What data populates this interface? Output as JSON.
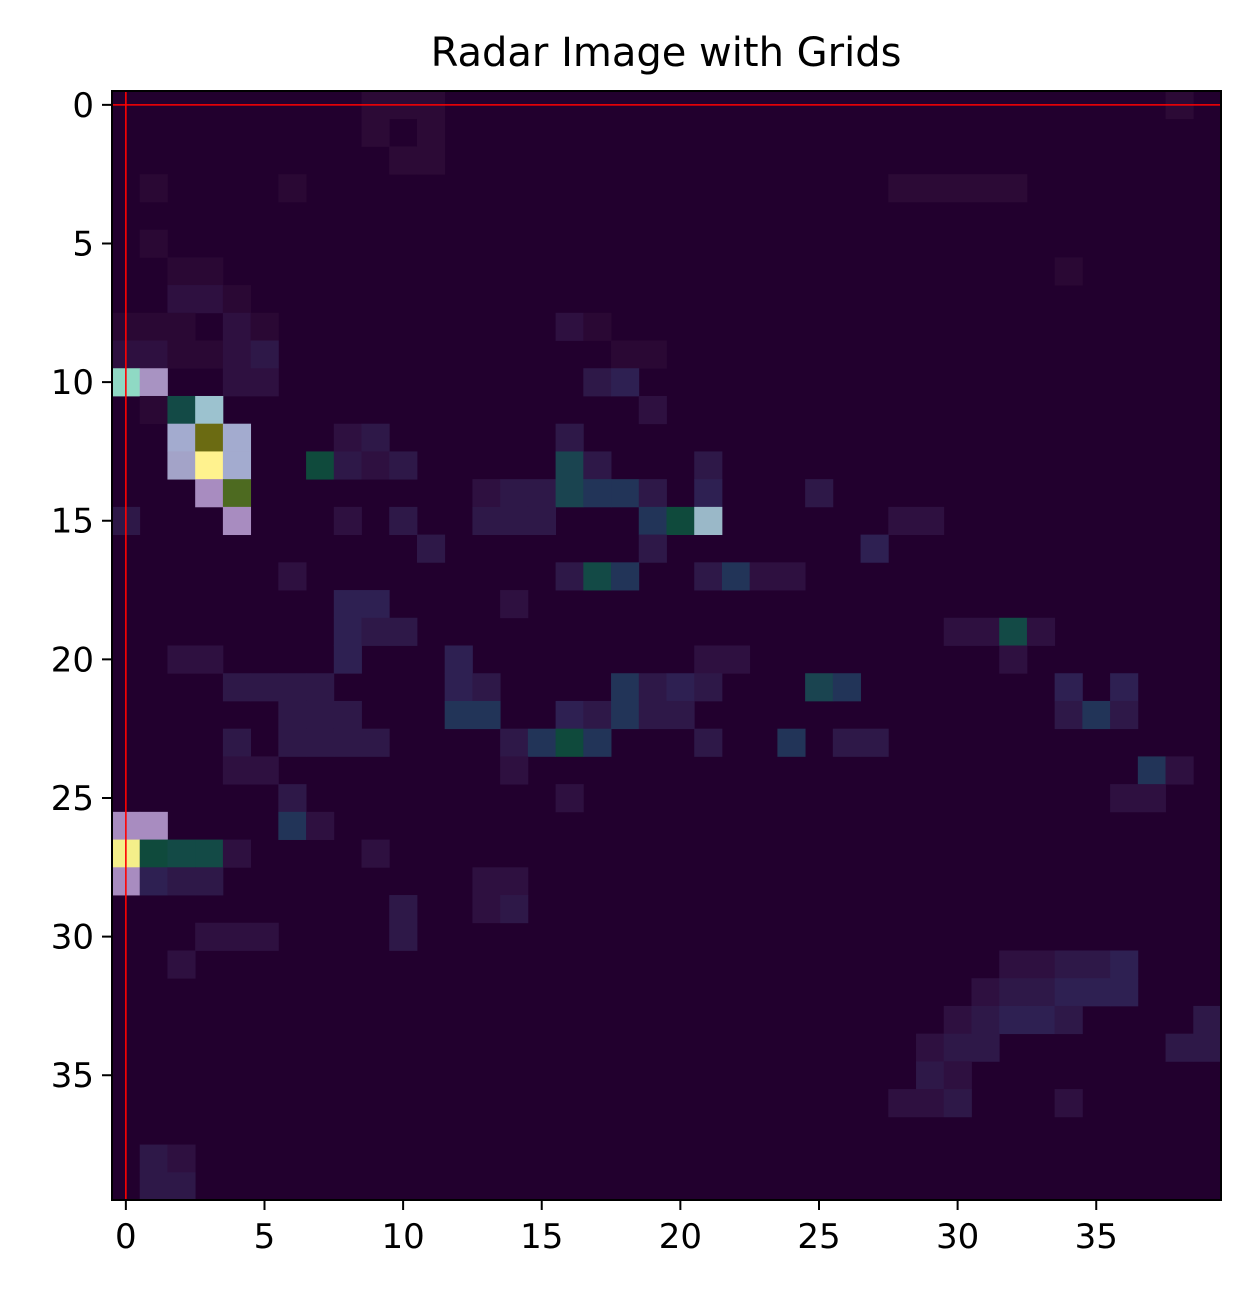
{
  "chart_data": {
    "type": "heatmap",
    "title": "Radar Image with Grids",
    "xlabel": "",
    "ylabel": "",
    "grid_size": [
      40,
      40
    ],
    "xlim": [
      -0.5,
      39.5
    ],
    "ylim": [
      39.5,
      -0.5
    ],
    "x_ticks": [
      0,
      5,
      10,
      15,
      20,
      25,
      30,
      35
    ],
    "y_ticks": [
      0,
      5,
      10,
      15,
      20,
      25,
      30,
      35
    ],
    "background_color": "#22002e",
    "grid_line": {
      "color": "#ff0000",
      "row": 0,
      "col": 0
    },
    "cells": [
      {
        "row": 0,
        "col": 9,
        "color": "#2c0a36"
      },
      {
        "row": 0,
        "col": 10,
        "color": "#2c0a36"
      },
      {
        "row": 0,
        "col": 11,
        "color": "#2c0a36"
      },
      {
        "row": 0,
        "col": 38,
        "color": "#2c0a36"
      },
      {
        "row": 1,
        "col": 9,
        "color": "#2c0a36"
      },
      {
        "row": 1,
        "col": 11,
        "color": "#2c0a36"
      },
      {
        "row": 2,
        "col": 10,
        "color": "#2c0a36"
      },
      {
        "row": 2,
        "col": 11,
        "color": "#2c0a36"
      },
      {
        "row": 3,
        "col": 1,
        "color": "#2a0834"
      },
      {
        "row": 3,
        "col": 6,
        "color": "#2a0834"
      },
      {
        "row": 3,
        "col": 28,
        "color": "#2c0a36"
      },
      {
        "row": 3,
        "col": 29,
        "color": "#2c0a36"
      },
      {
        "row": 3,
        "col": 30,
        "color": "#2c0a36"
      },
      {
        "row": 3,
        "col": 31,
        "color": "#2c0a36"
      },
      {
        "row": 3,
        "col": 32,
        "color": "#2c0a36"
      },
      {
        "row": 5,
        "col": 1,
        "color": "#2a0834"
      },
      {
        "row": 6,
        "col": 2,
        "color": "#2a0834"
      },
      {
        "row": 6,
        "col": 3,
        "color": "#2a0834"
      },
      {
        "row": 6,
        "col": 34,
        "color": "#2a0834"
      },
      {
        "row": 7,
        "col": 2,
        "color": "#2e1040"
      },
      {
        "row": 7,
        "col": 3,
        "color": "#2e1040"
      },
      {
        "row": 7,
        "col": 4,
        "color": "#2a0834"
      },
      {
        "row": 8,
        "col": 0,
        "color": "#2a0834"
      },
      {
        "row": 8,
        "col": 1,
        "color": "#2a0834"
      },
      {
        "row": 8,
        "col": 2,
        "color": "#2a0834"
      },
      {
        "row": 8,
        "col": 4,
        "color": "#2e1040"
      },
      {
        "row": 8,
        "col": 5,
        "color": "#2a0834"
      },
      {
        "row": 8,
        "col": 16,
        "color": "#2e1040"
      },
      {
        "row": 8,
        "col": 17,
        "color": "#2a0834"
      },
      {
        "row": 9,
        "col": 0,
        "color": "#2e1040"
      },
      {
        "row": 9,
        "col": 1,
        "color": "#2e1040"
      },
      {
        "row": 9,
        "col": 2,
        "color": "#2a0834"
      },
      {
        "row": 9,
        "col": 3,
        "color": "#2a0834"
      },
      {
        "row": 9,
        "col": 4,
        "color": "#2e1040"
      },
      {
        "row": 9,
        "col": 5,
        "color": "#2e1848"
      },
      {
        "row": 9,
        "col": 18,
        "color": "#2a0834"
      },
      {
        "row": 9,
        "col": 19,
        "color": "#2a0834"
      },
      {
        "row": 10,
        "col": 0,
        "color": "#8fd9c4"
      },
      {
        "row": 10,
        "col": 1,
        "color": "#a893c2"
      },
      {
        "row": 10,
        "col": 4,
        "color": "#2e1040"
      },
      {
        "row": 10,
        "col": 5,
        "color": "#2e1040"
      },
      {
        "row": 10,
        "col": 17,
        "color": "#2e1848"
      },
      {
        "row": 10,
        "col": 18,
        "color": "#2e2052"
      },
      {
        "row": 11,
        "col": 1,
        "color": "#2a0834"
      },
      {
        "row": 11,
        "col": 2,
        "color": "#134a46"
      },
      {
        "row": 11,
        "col": 3,
        "color": "#9cc2cf"
      },
      {
        "row": 11,
        "col": 19,
        "color": "#2e1040"
      },
      {
        "row": 12,
        "col": 2,
        "color": "#a3abcf"
      },
      {
        "row": 12,
        "col": 3,
        "color": "#6b6b12"
      },
      {
        "row": 12,
        "col": 4,
        "color": "#a3abcf"
      },
      {
        "row": 12,
        "col": 8,
        "color": "#2e1040"
      },
      {
        "row": 12,
        "col": 9,
        "color": "#2e1848"
      },
      {
        "row": 12,
        "col": 16,
        "color": "#2e1848"
      },
      {
        "row": 13,
        "col": 2,
        "color": "#a3a3c8"
      },
      {
        "row": 13,
        "col": 3,
        "color": "#fff28e"
      },
      {
        "row": 13,
        "col": 4,
        "color": "#a3abcf"
      },
      {
        "row": 13,
        "col": 7,
        "color": "#0f4a3c"
      },
      {
        "row": 13,
        "col": 8,
        "color": "#2e1848"
      },
      {
        "row": 13,
        "col": 9,
        "color": "#2e1040"
      },
      {
        "row": 13,
        "col": 10,
        "color": "#2e1848"
      },
      {
        "row": 13,
        "col": 16,
        "color": "#1a4450"
      },
      {
        "row": 13,
        "col": 17,
        "color": "#2e1848"
      },
      {
        "row": 13,
        "col": 21,
        "color": "#2e1848"
      },
      {
        "row": 14,
        "col": 3,
        "color": "#a88cc0"
      },
      {
        "row": 14,
        "col": 4,
        "color": "#4d6a20"
      },
      {
        "row": 14,
        "col": 13,
        "color": "#2e1040"
      },
      {
        "row": 14,
        "col": 14,
        "color": "#2e1848"
      },
      {
        "row": 14,
        "col": 15,
        "color": "#2e1848"
      },
      {
        "row": 14,
        "col": 16,
        "color": "#1a4450"
      },
      {
        "row": 14,
        "col": 17,
        "color": "#223458"
      },
      {
        "row": 14,
        "col": 18,
        "color": "#223458"
      },
      {
        "row": 14,
        "col": 19,
        "color": "#2e1848"
      },
      {
        "row": 14,
        "col": 21,
        "color": "#2e2052"
      },
      {
        "row": 14,
        "col": 25,
        "color": "#2e1848"
      },
      {
        "row": 15,
        "col": 0,
        "color": "#2e1848"
      },
      {
        "row": 15,
        "col": 4,
        "color": "#a88cc0"
      },
      {
        "row": 15,
        "col": 8,
        "color": "#2e1040"
      },
      {
        "row": 15,
        "col": 10,
        "color": "#2e1848"
      },
      {
        "row": 15,
        "col": 13,
        "color": "#2e1848"
      },
      {
        "row": 15,
        "col": 14,
        "color": "#2e1848"
      },
      {
        "row": 15,
        "col": 15,
        "color": "#2e1848"
      },
      {
        "row": 15,
        "col": 19,
        "color": "#223458"
      },
      {
        "row": 15,
        "col": 20,
        "color": "#0f4a3c"
      },
      {
        "row": 15,
        "col": 21,
        "color": "#9ab8c8"
      },
      {
        "row": 15,
        "col": 28,
        "color": "#2e1040"
      },
      {
        "row": 15,
        "col": 29,
        "color": "#2e1040"
      },
      {
        "row": 16,
        "col": 11,
        "color": "#2e1848"
      },
      {
        "row": 16,
        "col": 19,
        "color": "#2e1848"
      },
      {
        "row": 16,
        "col": 27,
        "color": "#2e2052"
      },
      {
        "row": 17,
        "col": 6,
        "color": "#2e1040"
      },
      {
        "row": 17,
        "col": 16,
        "color": "#2e1848"
      },
      {
        "row": 17,
        "col": 17,
        "color": "#134a46"
      },
      {
        "row": 17,
        "col": 18,
        "color": "#223458"
      },
      {
        "row": 17,
        "col": 21,
        "color": "#2e1848"
      },
      {
        "row": 17,
        "col": 22,
        "color": "#223458"
      },
      {
        "row": 17,
        "col": 23,
        "color": "#2e1040"
      },
      {
        "row": 17,
        "col": 24,
        "color": "#2e1040"
      },
      {
        "row": 18,
        "col": 8,
        "color": "#2e2052"
      },
      {
        "row": 18,
        "col": 9,
        "color": "#2e2052"
      },
      {
        "row": 18,
        "col": 14,
        "color": "#2e1040"
      },
      {
        "row": 19,
        "col": 8,
        "color": "#2e2052"
      },
      {
        "row": 19,
        "col": 9,
        "color": "#2e1848"
      },
      {
        "row": 19,
        "col": 10,
        "color": "#2e1848"
      },
      {
        "row": 19,
        "col": 30,
        "color": "#2e1040"
      },
      {
        "row": 19,
        "col": 31,
        "color": "#2e1040"
      },
      {
        "row": 19,
        "col": 32,
        "color": "#134a46"
      },
      {
        "row": 19,
        "col": 33,
        "color": "#2e1040"
      },
      {
        "row": 20,
        "col": 2,
        "color": "#2e1040"
      },
      {
        "row": 20,
        "col": 3,
        "color": "#2e1040"
      },
      {
        "row": 20,
        "col": 8,
        "color": "#2e2052"
      },
      {
        "row": 20,
        "col": 12,
        "color": "#2e2052"
      },
      {
        "row": 20,
        "col": 21,
        "color": "#2e1040"
      },
      {
        "row": 20,
        "col": 22,
        "color": "#2e1040"
      },
      {
        "row": 20,
        "col": 32,
        "color": "#2e1040"
      },
      {
        "row": 21,
        "col": 4,
        "color": "#2e1848"
      },
      {
        "row": 21,
        "col": 5,
        "color": "#2e1848"
      },
      {
        "row": 21,
        "col": 6,
        "color": "#2e1848"
      },
      {
        "row": 21,
        "col": 7,
        "color": "#2e1848"
      },
      {
        "row": 21,
        "col": 12,
        "color": "#2e2052"
      },
      {
        "row": 21,
        "col": 13,
        "color": "#2e1848"
      },
      {
        "row": 21,
        "col": 18,
        "color": "#223458"
      },
      {
        "row": 21,
        "col": 19,
        "color": "#2e1848"
      },
      {
        "row": 21,
        "col": 20,
        "color": "#2e2052"
      },
      {
        "row": 21,
        "col": 21,
        "color": "#2e1848"
      },
      {
        "row": 21,
        "col": 25,
        "color": "#1a4450"
      },
      {
        "row": 21,
        "col": 26,
        "color": "#223458"
      },
      {
        "row": 21,
        "col": 34,
        "color": "#2e2052"
      },
      {
        "row": 21,
        "col": 36,
        "color": "#2e2052"
      },
      {
        "row": 22,
        "col": 6,
        "color": "#2e1848"
      },
      {
        "row": 22,
        "col": 7,
        "color": "#2e1848"
      },
      {
        "row": 22,
        "col": 8,
        "color": "#2e1848"
      },
      {
        "row": 22,
        "col": 12,
        "color": "#223458"
      },
      {
        "row": 22,
        "col": 13,
        "color": "#223458"
      },
      {
        "row": 22,
        "col": 16,
        "color": "#2e2052"
      },
      {
        "row": 22,
        "col": 17,
        "color": "#2e1848"
      },
      {
        "row": 22,
        "col": 18,
        "color": "#223458"
      },
      {
        "row": 22,
        "col": 19,
        "color": "#2e1848"
      },
      {
        "row": 22,
        "col": 20,
        "color": "#2e1848"
      },
      {
        "row": 22,
        "col": 34,
        "color": "#2e1848"
      },
      {
        "row": 22,
        "col": 35,
        "color": "#223458"
      },
      {
        "row": 22,
        "col": 36,
        "color": "#2e1848"
      },
      {
        "row": 23,
        "col": 4,
        "color": "#2e1848"
      },
      {
        "row": 23,
        "col": 6,
        "color": "#2e1848"
      },
      {
        "row": 23,
        "col": 7,
        "color": "#2e1848"
      },
      {
        "row": 23,
        "col": 8,
        "color": "#2e1848"
      },
      {
        "row": 23,
        "col": 9,
        "color": "#2e1848"
      },
      {
        "row": 23,
        "col": 14,
        "color": "#2e1848"
      },
      {
        "row": 23,
        "col": 15,
        "color": "#223458"
      },
      {
        "row": 23,
        "col": 16,
        "color": "#0f4a3c"
      },
      {
        "row": 23,
        "col": 17,
        "color": "#223458"
      },
      {
        "row": 23,
        "col": 21,
        "color": "#2e1848"
      },
      {
        "row": 23,
        "col": 24,
        "color": "#223458"
      },
      {
        "row": 23,
        "col": 26,
        "color": "#2e1848"
      },
      {
        "row": 23,
        "col": 27,
        "color": "#2e1848"
      },
      {
        "row": 24,
        "col": 4,
        "color": "#2e1040"
      },
      {
        "row": 24,
        "col": 5,
        "color": "#2e1040"
      },
      {
        "row": 24,
        "col": 14,
        "color": "#2e1040"
      },
      {
        "row": 24,
        "col": 37,
        "color": "#223458"
      },
      {
        "row": 24,
        "col": 38,
        "color": "#2e1040"
      },
      {
        "row": 25,
        "col": 6,
        "color": "#2e1848"
      },
      {
        "row": 25,
        "col": 16,
        "color": "#2e1040"
      },
      {
        "row": 25,
        "col": 36,
        "color": "#2e1040"
      },
      {
        "row": 25,
        "col": 37,
        "color": "#2e1040"
      },
      {
        "row": 26,
        "col": 0,
        "color": "#a88cc0"
      },
      {
        "row": 26,
        "col": 1,
        "color": "#a88cc0"
      },
      {
        "row": 26,
        "col": 6,
        "color": "#223458"
      },
      {
        "row": 26,
        "col": 7,
        "color": "#2e1040"
      },
      {
        "row": 27,
        "col": 0,
        "color": "#f4ef8a"
      },
      {
        "row": 27,
        "col": 1,
        "color": "#0f4a3c"
      },
      {
        "row": 27,
        "col": 2,
        "color": "#134a46"
      },
      {
        "row": 27,
        "col": 3,
        "color": "#134a46"
      },
      {
        "row": 27,
        "col": 4,
        "color": "#2e1040"
      },
      {
        "row": 27,
        "col": 9,
        "color": "#2e1040"
      },
      {
        "row": 28,
        "col": 0,
        "color": "#a88cc0"
      },
      {
        "row": 28,
        "col": 1,
        "color": "#2e2052"
      },
      {
        "row": 28,
        "col": 2,
        "color": "#2e1848"
      },
      {
        "row": 28,
        "col": 3,
        "color": "#2e1848"
      },
      {
        "row": 28,
        "col": 13,
        "color": "#2e1040"
      },
      {
        "row": 28,
        "col": 14,
        "color": "#2e1040"
      },
      {
        "row": 29,
        "col": 10,
        "color": "#2e1848"
      },
      {
        "row": 29,
        "col": 13,
        "color": "#2e1040"
      },
      {
        "row": 29,
        "col": 14,
        "color": "#2e1848"
      },
      {
        "row": 30,
        "col": 3,
        "color": "#2e1040"
      },
      {
        "row": 30,
        "col": 4,
        "color": "#2e1040"
      },
      {
        "row": 30,
        "col": 5,
        "color": "#2e1040"
      },
      {
        "row": 30,
        "col": 10,
        "color": "#2e1848"
      },
      {
        "row": 31,
        "col": 2,
        "color": "#2e1040"
      },
      {
        "row": 31,
        "col": 32,
        "color": "#2e1040"
      },
      {
        "row": 31,
        "col": 33,
        "color": "#2e1040"
      },
      {
        "row": 31,
        "col": 34,
        "color": "#2e1848"
      },
      {
        "row": 31,
        "col": 35,
        "color": "#2e1848"
      },
      {
        "row": 31,
        "col": 36,
        "color": "#2e2052"
      },
      {
        "row": 32,
        "col": 31,
        "color": "#2e1040"
      },
      {
        "row": 32,
        "col": 32,
        "color": "#2e1848"
      },
      {
        "row": 32,
        "col": 33,
        "color": "#2e1848"
      },
      {
        "row": 32,
        "col": 34,
        "color": "#2e2052"
      },
      {
        "row": 32,
        "col": 35,
        "color": "#2e2052"
      },
      {
        "row": 32,
        "col": 36,
        "color": "#2e2052"
      },
      {
        "row": 33,
        "col": 30,
        "color": "#2e1040"
      },
      {
        "row": 33,
        "col": 31,
        "color": "#2e1848"
      },
      {
        "row": 33,
        "col": 32,
        "color": "#2e2052"
      },
      {
        "row": 33,
        "col": 33,
        "color": "#2e2052"
      },
      {
        "row": 33,
        "col": 34,
        "color": "#2e1848"
      },
      {
        "row": 33,
        "col": 39,
        "color": "#2e1848"
      },
      {
        "row": 34,
        "col": 29,
        "color": "#2e1040"
      },
      {
        "row": 34,
        "col": 30,
        "color": "#2e1848"
      },
      {
        "row": 34,
        "col": 31,
        "color": "#2e1848"
      },
      {
        "row": 34,
        "col": 38,
        "color": "#2e1848"
      },
      {
        "row": 34,
        "col": 39,
        "color": "#2e1848"
      },
      {
        "row": 35,
        "col": 29,
        "color": "#2e1848"
      },
      {
        "row": 35,
        "col": 30,
        "color": "#2e1040"
      },
      {
        "row": 36,
        "col": 28,
        "color": "#2e1040"
      },
      {
        "row": 36,
        "col": 29,
        "color": "#2e1040"
      },
      {
        "row": 36,
        "col": 30,
        "color": "#2e1848"
      },
      {
        "row": 36,
        "col": 34,
        "color": "#2e1040"
      },
      {
        "row": 38,
        "col": 1,
        "color": "#2e1848"
      },
      {
        "row": 38,
        "col": 2,
        "color": "#2e1040"
      },
      {
        "row": 39,
        "col": 1,
        "color": "#2e1848"
      },
      {
        "row": 39,
        "col": 2,
        "color": "#2e1848"
      }
    ]
  }
}
